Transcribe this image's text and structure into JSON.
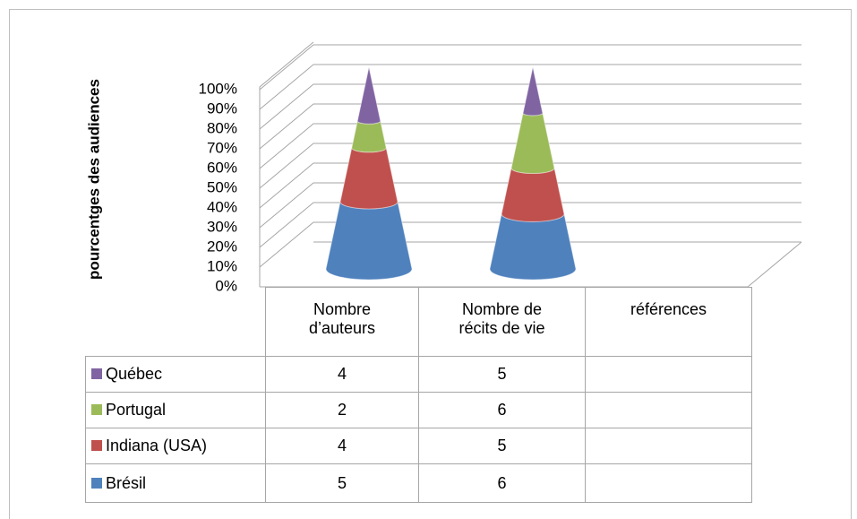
{
  "chart_data": {
    "type": "cone",
    "y_label": "pourcentges des audiences",
    "categories": [
      "Nombre d’auteurs",
      "Nombre de récits de vie",
      "références"
    ],
    "series": [
      {
        "name": "Québec",
        "color": "#8064a2",
        "values": [
          4,
          5,
          null
        ]
      },
      {
        "name": "Portugal",
        "color": "#9bbb59",
        "values": [
          2,
          6,
          null
        ]
      },
      {
        "name": "Indiana (USA)",
        "color": "#c0504d",
        "values": [
          4,
          5,
          null
        ]
      },
      {
        "name": "Brésil",
        "color": "#4f81bd",
        "values": [
          5,
          6,
          null
        ]
      }
    ],
    "ylim": [
      0,
      100
    ],
    "yticks": [
      {
        "value": 0,
        "label": "0%"
      },
      {
        "value": 10,
        "label": "10%"
      },
      {
        "value": 20,
        "label": "20%"
      },
      {
        "value": 30,
        "label": "30%"
      },
      {
        "value": 40,
        "label": "40%"
      },
      {
        "value": 50,
        "label": "50%"
      },
      {
        "value": 60,
        "label": "60%"
      },
      {
        "value": 70,
        "label": "70%"
      },
      {
        "value": 80,
        "label": "80%"
      },
      {
        "value": 90,
        "label": "90%"
      },
      {
        "value": 100,
        "label": "100%"
      }
    ],
    "grid": true
  }
}
